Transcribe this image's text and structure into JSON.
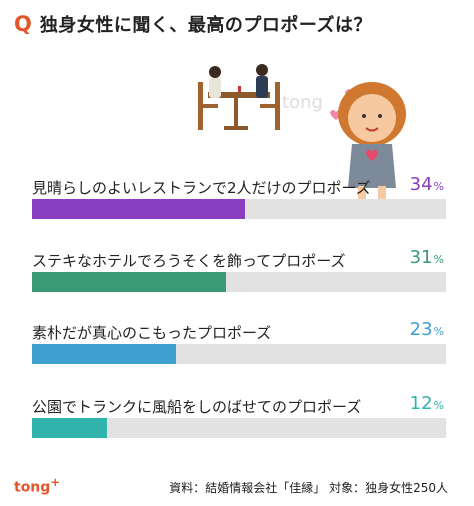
{
  "header": {
    "q_mark": "Q",
    "title": "独身女性に聞く、最高のプロポーズは？"
  },
  "illustration": {
    "watermark": "tong"
  },
  "colors": [
    "#8a3ec0",
    "#3a9a76",
    "#3f9fcf",
    "#2fb3ac"
  ],
  "chart_data": {
    "type": "bar",
    "orientation": "horizontal",
    "categories": [
      "見晴らしのよいレストランで2人だけのプロポーズ",
      "ステキなホテルでろうそくを飾ってプロポーズ",
      "素朴だが真心のこもったプロポーズ",
      "公園でトランクに風船をしのばせてのプロポーズ"
    ],
    "values": [
      34,
      31,
      23,
      12
    ],
    "value_labels": [
      "34",
      "31",
      "23",
      "12"
    ],
    "unit": "%",
    "xlim": [
      0,
      66
    ],
    "grid": false,
    "legend": "none"
  },
  "footer": {
    "logo": "tong",
    "logo_sup": "+",
    "source": "資料：結婚情報会社「佳縁」 対象：独身女性250人"
  }
}
